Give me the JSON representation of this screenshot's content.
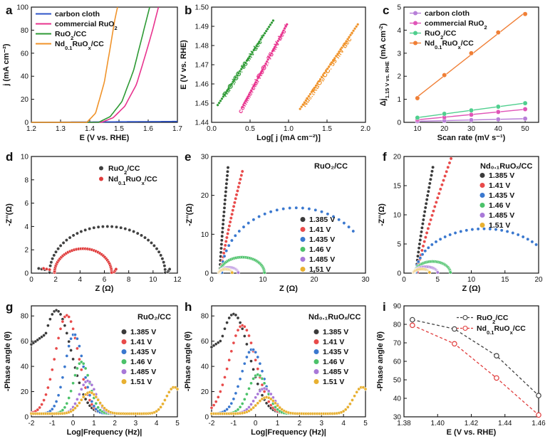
{
  "colors": {
    "carbon": "#2f55c8",
    "commercial": "#e8338e",
    "ruo2": "#2e9a35",
    "nd": "#f0932a",
    "v1385": "#3a3a3a",
    "v141": "#e84a4a",
    "v1435": "#3a78cf",
    "v146": "#4cc26a",
    "v1485": "#a878d8",
    "v151": "#e8b030",
    "i_ru": "#404040",
    "i_nd": "#e03b3b",
    "c_carbon": "#b77fd8",
    "c_comm": "#e055b8",
    "c_ruo2": "#4fcf8e",
    "c_nd": "#f07f36",
    "axis": "#111111"
  },
  "chart_data": [
    {
      "panel": "a",
      "type": "line",
      "xlabel": "E (V vs. RHE)",
      "ylabel": "j (mA cm⁻²)",
      "xlim": [
        1.2,
        1.7
      ],
      "ylim": [
        0,
        100
      ],
      "xticks": [
        "1.2",
        "1.3",
        "1.4",
        "1.5",
        "1.6",
        "1.7"
      ],
      "yticks": [
        "0",
        "20",
        "40",
        "60",
        "80",
        "100"
      ],
      "series": [
        {
          "name": "carbon cloth",
          "x": [
            1.2,
            1.7
          ],
          "y": [
            0,
            0.8
          ]
        },
        {
          "name": "commercial RuO2",
          "x": [
            1.2,
            1.44,
            1.48,
            1.52,
            1.56,
            1.59,
            1.615,
            1.635
          ],
          "y": [
            0,
            0,
            4,
            14,
            33,
            58,
            80,
            100
          ]
        },
        {
          "name": "RuO2/CC",
          "x": [
            1.2,
            1.43,
            1.47,
            1.51,
            1.55,
            1.58,
            1.605
          ],
          "y": [
            0,
            0,
            5,
            18,
            45,
            75,
            100
          ]
        },
        {
          "name": "Nd0.1RuOx/CC",
          "x": [
            1.2,
            1.39,
            1.42,
            1.45,
            1.47,
            1.485,
            1.495
          ],
          "y": [
            0,
            0,
            8,
            35,
            65,
            88,
            100
          ]
        }
      ]
    },
    {
      "panel": "b",
      "type": "scatter",
      "xlabel": "Log[ j (mA cm⁻²)]",
      "ylabel": "E (V vs. RHE)",
      "xlim": [
        0.0,
        2.0
      ],
      "ylim": [
        1.44,
        1.5
      ],
      "xticks": [
        "0.0",
        "0.5",
        "1.0",
        "1.5",
        "2.0"
      ],
      "yticks": [
        "1.44",
        "1.45",
        "1.46",
        "1.47",
        "1.48",
        "1.49",
        "1.50"
      ],
      "series": [
        {
          "name": "RuO2/CC",
          "label": "RuO₂/CC: 63 mV dec⁻¹",
          "x": [
            0.08,
            0.8
          ],
          "y": [
            1.449,
            1.493
          ]
        },
        {
          "name": "commercial RuO2",
          "label": "commercial RuO₂: 75 mV dec⁻¹",
          "x": [
            0.4,
            0.98
          ],
          "y": [
            1.448,
            1.491
          ]
        },
        {
          "name": "Nd0.1RuOx/CC",
          "label": "Nd₀.₁RuOₓ/CC: 59 mV dec⁻¹",
          "x": [
            1.15,
            1.9
          ],
          "y": [
            1.447,
            1.491
          ]
        }
      ]
    },
    {
      "panel": "c",
      "type": "scatter",
      "xlabel": "Scan rate (mV s⁻¹)",
      "ylabel": "Δj1.15 V vs. RHE (mA cm⁻²)",
      "xlim": [
        5,
        55
      ],
      "ylim": [
        0,
        5
      ],
      "xticks": [
        "10",
        "20",
        "30",
        "40",
        "50"
      ],
      "yticks": [
        "0",
        "1",
        "2",
        "3",
        "4",
        "5"
      ],
      "x": [
        10,
        20,
        30,
        40,
        50
      ],
      "series": [
        {
          "name": "carbon cloth",
          "values": [
            0.05,
            0.07,
            0.1,
            0.13,
            0.16
          ]
        },
        {
          "name": "commercial RuO2",
          "values": [
            0.12,
            0.22,
            0.33,
            0.45,
            0.57
          ]
        },
        {
          "name": "RuO2/CC",
          "values": [
            0.2,
            0.37,
            0.52,
            0.68,
            0.83
          ]
        },
        {
          "name": "Nd0.1RuOx/CC",
          "values": [
            1.05,
            2.05,
            3.0,
            3.9,
            4.7
          ]
        }
      ]
    },
    {
      "panel": "d",
      "type": "scatter",
      "xlabel": "Z (Ω)",
      "ylabel": "-Z''(Ω)",
      "xlim": [
        0,
        12
      ],
      "ylim": [
        0,
        10
      ],
      "xticks": [
        "0",
        "2",
        "4",
        "6",
        "8",
        "10",
        "12"
      ],
      "yticks": [
        "0",
        "2",
        "4",
        "6",
        "8",
        "10"
      ],
      "series": [
        {
          "name": "RuO2/CC",
          "arc": {
            "r0": 1.5,
            "r1": 11.0,
            "peak": 4.0,
            "tail": 11.3
          }
        },
        {
          "name": "Nd0.1RuOx/CC",
          "arc": {
            "r0": 1.9,
            "r1": 6.6,
            "peak": 2.1,
            "tail": 6.7
          }
        }
      ]
    },
    {
      "panel": "e",
      "type": "scatter",
      "title": "RuO₂/CC",
      "xlabel": "Z (Ω)",
      "ylabel": "-Z''(Ω)",
      "xlim": [
        0,
        30
      ],
      "ylim": [
        0,
        30
      ],
      "xticks": [
        "0",
        "10",
        "20",
        "30"
      ],
      "yticks": [
        "0",
        "10",
        "20",
        "30"
      ],
      "series": [
        {
          "name": "1.385 V",
          "capacitive": {
            "x0": 1.6,
            "x1": 3.2,
            "ymax": 27
          }
        },
        {
          "name": "1.41 V",
          "capacitive": {
            "x0": 1.8,
            "x1": 6.0,
            "ymax": 26
          }
        },
        {
          "name": "1.435 V",
          "arc": {
            "r0": 2.0,
            "r1": 31,
            "peak": 16.8,
            "tail": 28
          }
        },
        {
          "name": "1.46 V",
          "arc": {
            "r0": 1.6,
            "r1": 10.3,
            "peak": 4.1,
            "tail": 10.5
          }
        },
        {
          "name": "1.485 V",
          "arc": {
            "r0": 1.5,
            "r1": 5.2,
            "peak": 1.5,
            "tail": 5.3
          }
        },
        {
          "name": "1.51 V",
          "arc": {
            "r0": 1.4,
            "r1": 4.0,
            "peak": 1.0,
            "tail": 4.1
          }
        }
      ]
    },
    {
      "panel": "f",
      "type": "scatter",
      "title": "Nd₀.₁RuOₓ/CC",
      "xlabel": "Z (Ω)",
      "ylabel": "-Z''(Ω)",
      "xlim": [
        0,
        20
      ],
      "ylim": [
        0,
        20
      ],
      "xticks": [
        "0",
        "5",
        "10",
        "15",
        "20"
      ],
      "yticks": [
        "0",
        "5",
        "10",
        "15",
        "20"
      ],
      "series": [
        {
          "name": "1.385 V",
          "capacitive": {
            "x0": 1.8,
            "x1": 4.3,
            "ymax": 18
          }
        },
        {
          "name": "1.41 V",
          "capacitive": {
            "x0": 2.0,
            "x1": 7.0,
            "ymax": 19.5
          }
        },
        {
          "name": "1.435 V",
          "arc": {
            "r0": 1.8,
            "r1": 22,
            "peak": 7.6,
            "tail": 20
          }
        },
        {
          "name": "1.46 V",
          "arc": {
            "r0": 1.6,
            "r1": 6.9,
            "peak": 2.0,
            "tail": 7.0
          }
        },
        {
          "name": "1.485 V",
          "arc": {
            "r0": 1.5,
            "r1": 5.0,
            "peak": 1.1,
            "tail": 5.1
          }
        },
        {
          "name": "1.51 V",
          "arc": {
            "r0": 1.4,
            "r1": 3.8,
            "peak": 0.7,
            "tail": 3.9
          }
        }
      ]
    },
    {
      "panel": "g",
      "type": "scatter",
      "title": "RuO₂/CC",
      "xlabel": "Log|Frequency (Hz)|",
      "ylabel": "-Phase angle (θ)",
      "xlim": [
        -2,
        5
      ],
      "ylim": [
        0,
        88
      ],
      "xticks": [
        "-2",
        "-1",
        "0",
        "1",
        "2",
        "3",
        "4",
        "5"
      ],
      "yticks": [
        "0",
        "20",
        "40",
        "60",
        "80"
      ],
      "series": [
        {
          "name": "1.385 V",
          "peak": {
            "x": -0.8,
            "h": 82,
            "w": 1.0
          }
        },
        {
          "name": "1.41 V",
          "peak": {
            "x": -0.3,
            "h": 78,
            "w": 0.78
          }
        },
        {
          "name": "1.435 V",
          "peak": {
            "x": 0.05,
            "h": 63,
            "w": 0.62
          }
        },
        {
          "name": "1.46 V",
          "peak": {
            "x": 0.4,
            "h": 41,
            "w": 0.55
          }
        },
        {
          "name": "1.485 V",
          "peak": {
            "x": 0.7,
            "h": 26,
            "w": 0.55
          }
        },
        {
          "name": "1.51 V",
          "peak": {
            "x": 0.8,
            "h": 17,
            "w": 0.6
          }
        }
      ]
    },
    {
      "panel": "h",
      "type": "scatter",
      "title": "Nd₀.₁RuOₓ/CC",
      "xlabel": "Log|Frequency (Hz)|",
      "ylabel": "-Phase angle (θ)",
      "xlim": [
        -2,
        5
      ],
      "ylim": [
        0,
        88
      ],
      "xticks": [
        "-2",
        "-1",
        "0",
        "1",
        "2",
        "3",
        "4",
        "5"
      ],
      "yticks": [
        "0",
        "20",
        "40",
        "60",
        "80"
      ],
      "series": [
        {
          "name": "1.385 V",
          "peak": {
            "x": -1.0,
            "h": 79,
            "w": 1.0
          }
        },
        {
          "name": "1.41 V",
          "peak": {
            "x": -0.6,
            "h": 70,
            "w": 0.85
          }
        },
        {
          "name": "1.435 V",
          "peak": {
            "x": -0.15,
            "h": 51,
            "w": 0.7
          }
        },
        {
          "name": "1.46 V",
          "peak": {
            "x": 0.1,
            "h": 31,
            "w": 0.6
          }
        },
        {
          "name": "1.485 V",
          "peak": {
            "x": 0.4,
            "h": 20,
            "w": 0.6
          }
        },
        {
          "name": "1.51 V",
          "peak": {
            "x": 0.5,
            "h": 13,
            "w": 0.6
          }
        }
      ]
    },
    {
      "panel": "i",
      "type": "line",
      "xlabel": "E (V vs. RHE)",
      "ylabel": "-Phase angle (θ)",
      "xlim": [
        1.38,
        1.46
      ],
      "ylim": [
        30,
        90
      ],
      "xticks": [
        "1.38",
        "1.40",
        "1.42",
        "1.44",
        "1.46"
      ],
      "yticks": [
        "30",
        "40",
        "50",
        "60",
        "70",
        "80",
        "90"
      ],
      "categories": [
        1.385,
        1.41,
        1.435,
        1.46
      ],
      "series": [
        {
          "name": "RuO2/CC",
          "values": [
            82.5,
            77.5,
            63,
            41.5
          ]
        },
        {
          "name": "Nd0.1RuOx/CC",
          "values": [
            79.5,
            69.5,
            51,
            31
          ]
        }
      ]
    }
  ],
  "text": {
    "letters": [
      "a",
      "b",
      "c",
      "d",
      "e",
      "f",
      "g",
      "h",
      "i"
    ],
    "voltages": [
      "1.385 V",
      "1.41 V",
      "1.435 V",
      "1.46 V",
      "1.485 V",
      "1.51 V"
    ],
    "carbon_cloth": "carbon cloth",
    "commercial_ruo": "commercial RuO",
    "ruo_cc": [
      "RuO",
      "/CC"
    ],
    "nd_ruo": [
      "Nd",
      "RuO",
      "/CC"
    ],
    "sub2": "2",
    "sub01": "0.1",
    "subx": "x",
    "c_ylabel": [
      "Δj",
      "1.15 V vs. RHE",
      " (mA cm",
      "-2",
      ")"
    ]
  }
}
